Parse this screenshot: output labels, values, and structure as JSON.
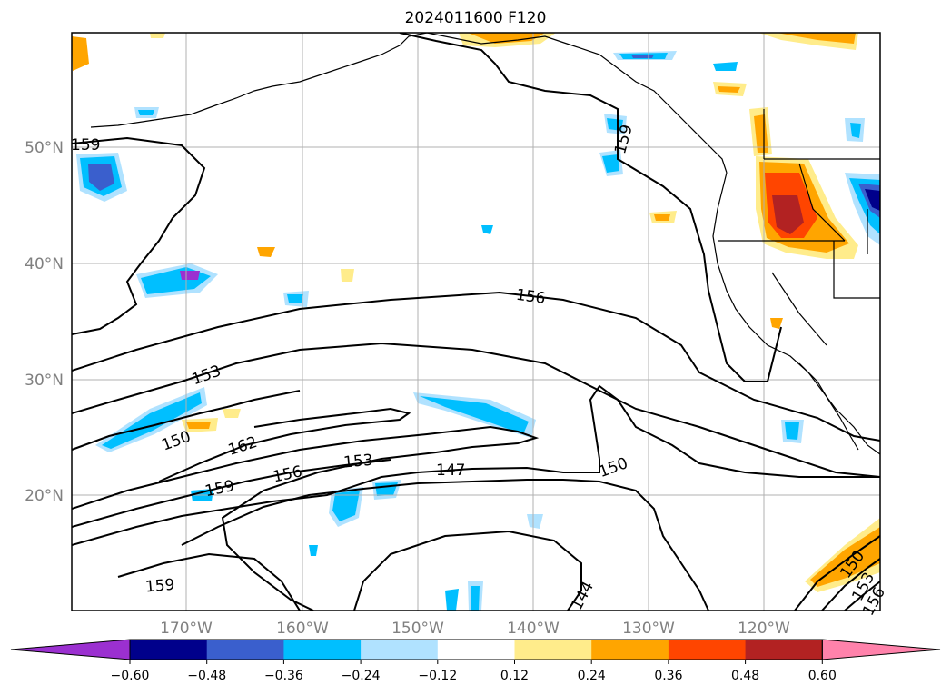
{
  "title": "2024011600 F120",
  "lat_labels": [
    "50°N",
    "40°N",
    "30°N",
    "20°N"
  ],
  "lon_labels": [
    "170°W",
    "160°W",
    "150°W",
    "140°W",
    "130°W",
    "120°W"
  ],
  "contour_labels": [
    "159",
    "159",
    "156",
    "153",
    "150",
    "162",
    "159",
    "156",
    "153",
    "147",
    "150",
    "159",
    "144",
    "150",
    "153",
    "156"
  ],
  "colorbar": {
    "ticks": [
      "−0.60",
      "−0.48",
      "−0.36",
      "−0.24",
      "−0.12",
      "0.12",
      "0.24",
      "0.36",
      "0.48",
      "0.60"
    ],
    "colors": [
      "#9b30d0",
      "#00008b",
      "#3a5fcd",
      "#00bfff",
      "#b0e2ff",
      "#ffffff",
      "#ffec8b",
      "#ffa500",
      "#ff4500",
      "#b22222",
      "#ff82ab"
    ]
  },
  "shading_colors": {
    "light_blue": "#b0e2ff",
    "deep_sky": "#00bfff",
    "royal": "#3a5fcd",
    "navy": "#00008b",
    "light_yellow": "#ffec8b",
    "orange": "#ffa500",
    "red_orange": "#ff4500",
    "firebrick": "#b22222"
  }
}
